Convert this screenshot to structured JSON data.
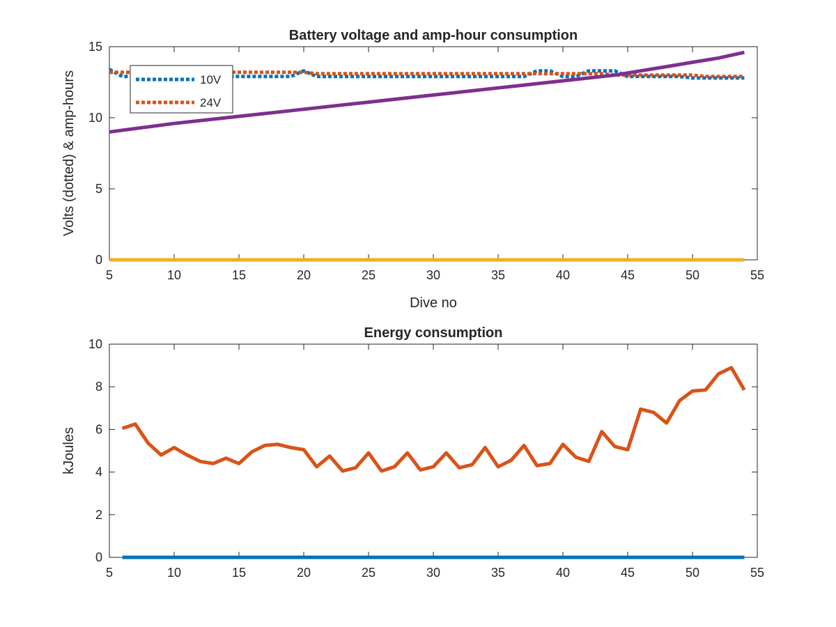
{
  "chart_data": [
    {
      "type": "line",
      "title": "Battery voltage and amp-hour consumption",
      "xlabel": "Dive no",
      "ylabel": "Volts (dotted) & amp-hours",
      "xlim": [
        5,
        55
      ],
      "ylim": [
        0,
        15
      ],
      "xticks": [
        5,
        10,
        15,
        20,
        25,
        30,
        35,
        40,
        45,
        50,
        55
      ],
      "yticks": [
        0,
        5,
        10,
        15
      ],
      "grid": false,
      "legend_position": "top-left",
      "series": [
        {
          "name": "10V",
          "color": "#0072BD",
          "style": "dotted",
          "x": [
            5,
            6,
            7,
            8,
            9,
            10,
            11,
            12,
            13,
            14,
            15,
            16,
            17,
            18,
            19,
            20,
            21,
            22,
            23,
            24,
            25,
            26,
            27,
            28,
            29,
            30,
            31,
            32,
            33,
            34,
            35,
            36,
            37,
            38,
            39,
            40,
            41,
            42,
            43,
            44,
            45,
            46,
            47,
            48,
            49,
            50,
            51,
            52,
            53,
            54
          ],
          "values": [
            13.4,
            12.9,
            12.9,
            12.9,
            12.9,
            12.9,
            12.9,
            12.9,
            12.9,
            12.9,
            12.9,
            12.9,
            12.9,
            12.9,
            12.9,
            13.3,
            12.9,
            12.9,
            12.9,
            12.9,
            12.9,
            12.9,
            12.9,
            12.9,
            12.9,
            12.9,
            12.9,
            12.9,
            12.9,
            12.9,
            12.9,
            12.9,
            12.9,
            13.3,
            13.3,
            12.9,
            12.9,
            13.3,
            13.3,
            13.3,
            12.9,
            12.9,
            12.9,
            12.9,
            12.9,
            12.8,
            12.8,
            12.8,
            12.8,
            12.8
          ]
        },
        {
          "name": "24V",
          "color": "#D95319",
          "style": "dotted",
          "x": [
            5,
            6,
            7,
            8,
            9,
            10,
            11,
            12,
            13,
            14,
            15,
            16,
            17,
            18,
            19,
            20,
            21,
            22,
            23,
            24,
            25,
            26,
            27,
            28,
            29,
            30,
            31,
            32,
            33,
            34,
            35,
            36,
            37,
            38,
            39,
            40,
            41,
            42,
            43,
            44,
            45,
            46,
            47,
            48,
            49,
            50,
            51,
            52,
            53,
            54
          ],
          "values": [
            13.2,
            13.2,
            13.2,
            13.2,
            13.2,
            13.2,
            13.2,
            13.2,
            13.2,
            13.2,
            13.2,
            13.2,
            13.2,
            13.2,
            13.2,
            13.2,
            13.1,
            13.1,
            13.1,
            13.1,
            13.1,
            13.1,
            13.1,
            13.1,
            13.1,
            13.1,
            13.1,
            13.1,
            13.1,
            13.1,
            13.1,
            13.1,
            13.1,
            13.1,
            13.1,
            13.1,
            13.1,
            13.1,
            13.1,
            13.0,
            13.0,
            13.0,
            13.0,
            13.0,
            13.0,
            13.0,
            12.9,
            12.9,
            12.9,
            12.9
          ]
        },
        {
          "color": "#EDB120",
          "style": "solid",
          "x": [
            5,
            54
          ],
          "values": [
            0,
            0
          ]
        },
        {
          "color": "#7E2F8E",
          "style": "solid",
          "x": [
            5,
            10,
            15,
            20,
            25,
            30,
            35,
            40,
            42,
            44,
            46,
            48,
            50,
            52,
            54
          ],
          "values": [
            9.0,
            9.6,
            10.1,
            10.6,
            11.1,
            11.6,
            12.1,
            12.6,
            12.8,
            13.0,
            13.3,
            13.6,
            13.9,
            14.2,
            14.6
          ]
        }
      ]
    },
    {
      "type": "line",
      "title": "Energy consumption",
      "xlabel": "",
      "ylabel": "kJoules",
      "xlim": [
        5,
        55
      ],
      "ylim": [
        0,
        10
      ],
      "xticks": [
        5,
        10,
        15,
        20,
        25,
        30,
        35,
        40,
        45,
        50,
        55
      ],
      "yticks": [
        0,
        2,
        4,
        6,
        8,
        10
      ],
      "grid": false,
      "series": [
        {
          "color": "#0072BD",
          "style": "solid",
          "x": [
            6,
            54
          ],
          "values": [
            0,
            0
          ]
        },
        {
          "color": "#D95319",
          "style": "solid",
          "x": [
            6,
            7,
            8,
            9,
            10,
            11,
            12,
            13,
            14,
            15,
            16,
            17,
            18,
            19,
            20,
            21,
            22,
            23,
            24,
            25,
            26,
            27,
            28,
            29,
            30,
            31,
            32,
            33,
            34,
            35,
            36,
            37,
            38,
            39,
            40,
            41,
            42,
            43,
            44,
            45,
            46,
            47,
            48,
            49,
            50,
            51,
            52,
            53,
            54
          ],
          "values": [
            6.05,
            6.25,
            5.35,
            4.8,
            5.15,
            4.8,
            4.5,
            4.4,
            4.65,
            4.4,
            4.95,
            5.25,
            5.3,
            5.15,
            5.05,
            4.25,
            4.75,
            4.05,
            4.2,
            4.9,
            4.05,
            4.25,
            4.9,
            4.1,
            4.25,
            4.9,
            4.2,
            4.35,
            5.15,
            4.25,
            4.55,
            5.25,
            4.3,
            4.4,
            5.3,
            4.7,
            4.5,
            5.9,
            5.2,
            5.05,
            6.95,
            6.8,
            6.3,
            7.35,
            7.8,
            7.85,
            8.6,
            8.9,
            7.85
          ]
        }
      ]
    }
  ]
}
